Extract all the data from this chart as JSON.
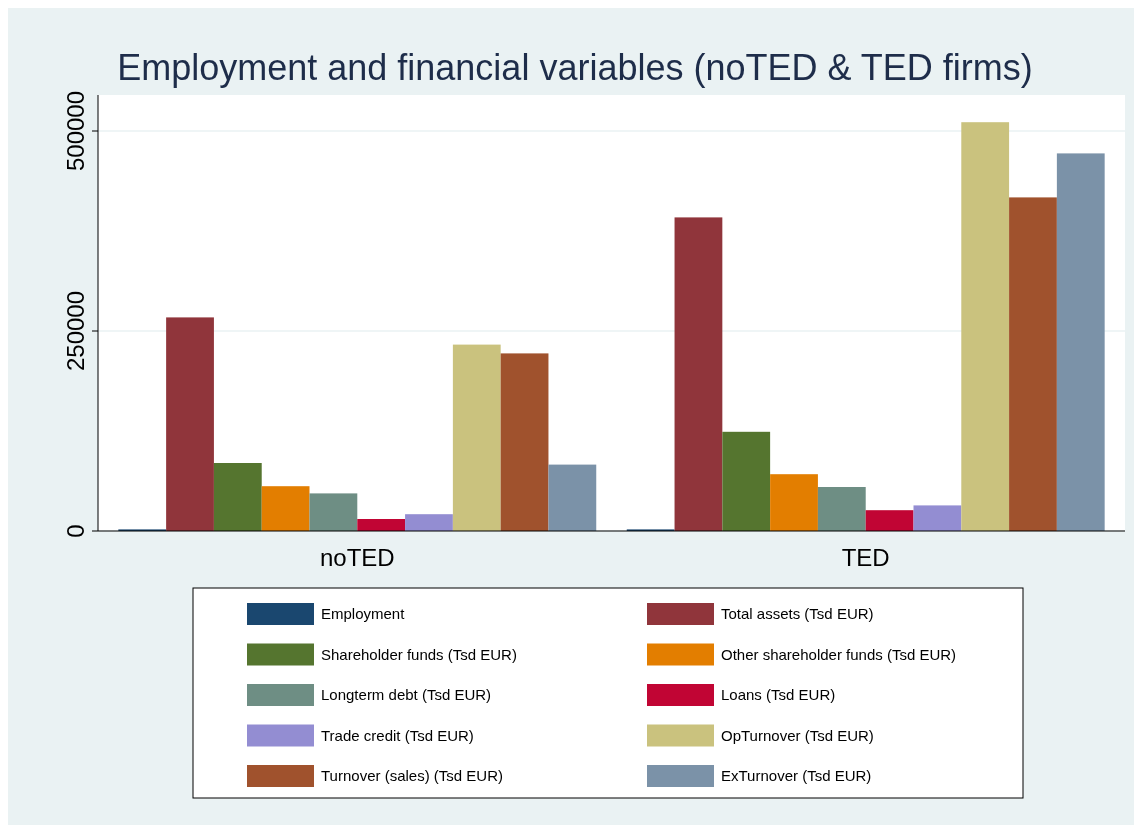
{
  "chart_data": {
    "type": "bar",
    "title": "Employment and financial variables (noTED & TED firms)",
    "categories": [
      "noTED",
      "TED"
    ],
    "series": [
      {
        "name": "Employment",
        "color": "#1a476f",
        "values": [
          2000,
          2000
        ]
      },
      {
        "name": "Total assets (Tsd EUR)",
        "color": "#90353b",
        "values": [
          267000,
          392000
        ]
      },
      {
        "name": "Shareholder funds (Tsd EUR)",
        "color": "#55752f",
        "values": [
          85000,
          124000
        ]
      },
      {
        "name": "Other shareholder funds (Tsd EUR)",
        "color": "#e37e00",
        "values": [
          56000,
          71000
        ]
      },
      {
        "name": "Longterm debt (Tsd EUR)",
        "color": "#6e8e84",
        "values": [
          47000,
          55000
        ]
      },
      {
        "name": "Loans (Tsd EUR)",
        "color": "#c10534",
        "values": [
          15000,
          26000
        ]
      },
      {
        "name": "Trade credit (Tsd EUR)",
        "color": "#938dd2",
        "values": [
          21000,
          32000
        ]
      },
      {
        "name": "OpTurnover (Tsd EUR)",
        "color": "#cac27e",
        "values": [
          233000,
          511000
        ]
      },
      {
        "name": "Turnover (sales) (Tsd EUR)",
        "color": "#a0522d",
        "values": [
          222000,
          417000
        ]
      },
      {
        "name": "ExTurnover (Tsd EUR)",
        "color": "#7b92a8",
        "values": [
          83000,
          472000
        ]
      }
    ],
    "ylim": [
      0,
      545000
    ],
    "yticks": [
      0,
      250000,
      500000
    ],
    "grid": "y",
    "legend": "bottom"
  }
}
